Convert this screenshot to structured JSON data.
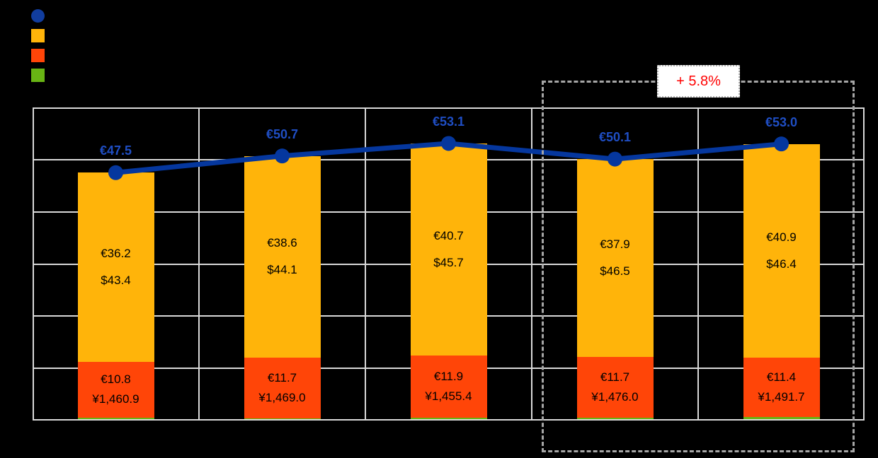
{
  "chart_data": {
    "type": "combo-stacked-bar-line",
    "groups": 5,
    "ylim": [
      0,
      60
    ],
    "y_gridline_step": 10,
    "grid": true,
    "legend_position": "top-left",
    "legend": [
      {
        "marker": "circle",
        "color": "#113D9E"
      },
      {
        "marker": "square",
        "color": "#FFB40A"
      },
      {
        "marker": "square",
        "color": "#FF4508"
      },
      {
        "marker": "square",
        "color": "#68B414"
      }
    ],
    "series": [
      {
        "name": "total-line",
        "type": "line",
        "color": "#05379E",
        "label_color": "#1F4EC4",
        "values": [
          47.5,
          50.7,
          53.1,
          50.1,
          53.0
        ],
        "labels": [
          "€47.5",
          "€50.7",
          "€53.1",
          "€50.1",
          "€53.0"
        ]
      },
      {
        "name": "yellow-segment",
        "type": "bar",
        "color": "#FFB40A",
        "values": [
          36.2,
          38.6,
          40.7,
          37.9,
          40.9
        ],
        "labels_line1": [
          "€36.2",
          "€38.6",
          "€40.7",
          "€37.9",
          "€40.9"
        ],
        "labels_line2": [
          "$43.4",
          "$44.1",
          "$45.7",
          "$46.5",
          "$46.4"
        ]
      },
      {
        "name": "red-segment",
        "type": "bar",
        "color": "#FF4508",
        "values": [
          10.8,
          11.7,
          11.9,
          11.7,
          11.4
        ],
        "labels_line1": [
          "€10.8",
          "€11.7",
          "€11.9",
          "€11.7",
          "€11.4"
        ],
        "labels_line2": [
          "¥1,460.9",
          "¥1,469.0",
          "¥1,455.4",
          "¥1,476.0",
          "¥1,491.7"
        ]
      },
      {
        "name": "green-segment",
        "type": "bar",
        "color": "#68B414",
        "values": [
          0.5,
          0.4,
          0.5,
          0.5,
          0.7
        ],
        "labels_line1": [],
        "labels_line2": []
      }
    ],
    "annotation": {
      "label": "+ 5.8%",
      "color": "#FF0000",
      "background": "#FFFFFF",
      "covers_last_groups": 2
    },
    "colors": {
      "background": "#000000",
      "gridline": "#D9D9D9",
      "highlight_border": "#A6A6A6",
      "bar_label_text": "#000000"
    }
  }
}
